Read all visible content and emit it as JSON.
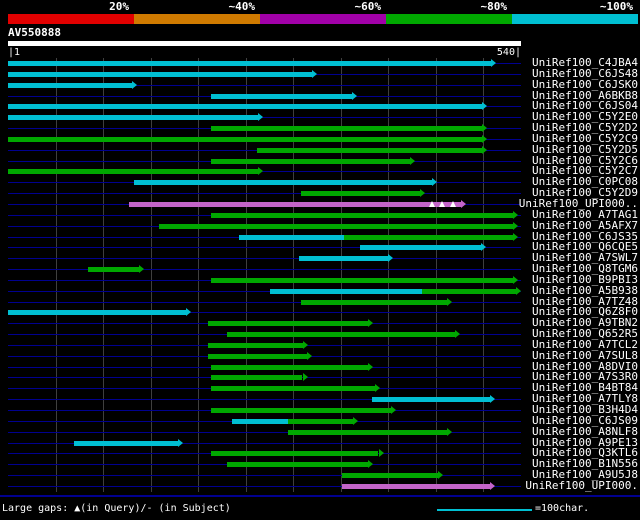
{
  "scale": {
    "segments": [
      {
        "label": "20%",
        "color": "#e10000"
      },
      {
        "label": "~40%",
        "color": "#cf7a00"
      },
      {
        "label": "~60%",
        "color": "#a100a8"
      },
      {
        "label": "~80%",
        "color": "#00a800"
      },
      {
        "label": "~100%",
        "color": "#00bfd2"
      }
    ]
  },
  "query": {
    "name": "AV550888",
    "ruler_left": "|1",
    "ruler_right": "540|",
    "length": 540
  },
  "footer": {
    "gaps_label": "Large gaps: ▲(in Query)/- (in Subject)",
    "ruler_label": "=100char.",
    "ruler_units": 100
  },
  "palette": {
    "cyan": "#00bfd2",
    "green": "#00a800",
    "magenta": "#c364c9",
    "row_line": "#000090",
    "grid_line": "#3f3f3f",
    "query_bar": "#ffffff",
    "gap_marker": "#ffffff"
  },
  "chart_data": {
    "type": "bar",
    "orientation": "horizontal",
    "title": "AV550888",
    "x_range": [
      1,
      540
    ],
    "grid_step": 50,
    "legend_bins": {
      "cyan": "~100%",
      "green": "~80%",
      "magenta": "~60%",
      "orange": "~40%",
      "red": "20%"
    },
    "rows": [
      {
        "label": "UniRef100_C4JBA4",
        "segments": [
          {
            "color": "cyan",
            "start": 0,
            "end": 508
          }
        ]
      },
      {
        "label": "UniRef100_C6JS48",
        "segments": [
          {
            "color": "cyan",
            "start": 0,
            "end": 320
          }
        ]
      },
      {
        "label": "UniRef100_C6JSK0",
        "segments": [
          {
            "color": "cyan",
            "start": 0,
            "end": 130
          }
        ]
      },
      {
        "label": "UniRef100_A6BKB8",
        "segments": [
          {
            "color": "cyan",
            "start": 214,
            "end": 362
          }
        ]
      },
      {
        "label": "UniRef100_C6JS04",
        "segments": [
          {
            "color": "cyan",
            "start": 0,
            "end": 499
          }
        ]
      },
      {
        "label": "UniRef100_C5Y2E0",
        "segments": [
          {
            "color": "cyan",
            "start": 0,
            "end": 263
          }
        ]
      },
      {
        "label": "UniRef100_C5Y2D2",
        "segments": [
          {
            "color": "green",
            "start": 214,
            "end": 499
          }
        ]
      },
      {
        "label": "UniRef100_C5Y2C9",
        "segments": [
          {
            "color": "green",
            "start": 0,
            "end": 499
          }
        ]
      },
      {
        "label": "UniRef100_C5Y2D5",
        "segments": [
          {
            "color": "green",
            "start": 262,
            "end": 499
          }
        ]
      },
      {
        "label": "UniRef100_C5Y2C6",
        "segments": [
          {
            "color": "green",
            "start": 214,
            "end": 423
          }
        ]
      },
      {
        "label": "UniRef100_C5Y2C7",
        "segments": [
          {
            "color": "green",
            "start": 0,
            "end": 263
          }
        ]
      },
      {
        "label": "UniRef100_C0PC08",
        "segments": [
          {
            "color": "cyan",
            "start": 133,
            "end": 446
          }
        ]
      },
      {
        "label": "UniRef100_C5Y2D9",
        "segments": [
          {
            "color": "green",
            "start": 308,
            "end": 434
          }
        ]
      },
      {
        "label": "UniRef100_UPI000..",
        "segments": [
          {
            "color": "magenta",
            "start": 127,
            "end": 477
          }
        ],
        "gap_markers": [
          446,
          457,
          468
        ]
      },
      {
        "label": "UniRef100_A7TAG1",
        "segments": [
          {
            "color": "green",
            "start": 214,
            "end": 532
          }
        ]
      },
      {
        "label": "UniRef100_A5AFX7",
        "segments": [
          {
            "color": "green",
            "start": 159,
            "end": 532
          }
        ]
      },
      {
        "label": "UniRef100_C6JS35",
        "segments": [
          {
            "color": "cyan",
            "start": 243,
            "end": 354
          },
          {
            "color": "green",
            "start": 354,
            "end": 532
          }
        ]
      },
      {
        "label": "UniRef100_Q6CQE5",
        "segments": [
          {
            "color": "cyan",
            "start": 370,
            "end": 498
          }
        ]
      },
      {
        "label": "UniRef100_A7SWL7",
        "segments": [
          {
            "color": "cyan",
            "start": 306,
            "end": 400
          }
        ]
      },
      {
        "label": "UniRef100_Q8TGM6",
        "segments": [
          {
            "color": "green",
            "start": 84,
            "end": 138
          }
        ]
      },
      {
        "label": "UniRef100_B9PBI3",
        "segments": [
          {
            "color": "green",
            "start": 214,
            "end": 532
          }
        ]
      },
      {
        "label": "UniRef100_A5B938",
        "segments": [
          {
            "color": "cyan",
            "start": 276,
            "end": 436
          },
          {
            "color": "green",
            "start": 436,
            "end": 535
          }
        ]
      },
      {
        "label": "UniRef100_A7TZ48",
        "segments": [
          {
            "color": "green",
            "start": 308,
            "end": 462
          }
        ]
      },
      {
        "label": "UniRef100_Q6Z8F0",
        "segments": [
          {
            "color": "cyan",
            "start": 0,
            "end": 187
          }
        ]
      },
      {
        "label": "UniRef100_A9TBN2",
        "segments": [
          {
            "color": "green",
            "start": 210,
            "end": 379
          }
        ]
      },
      {
        "label": "UniRef100_Q652R5",
        "segments": [
          {
            "color": "green",
            "start": 231,
            "end": 471
          }
        ]
      },
      {
        "label": "UniRef100_A7TCL2",
        "segments": [
          {
            "color": "green",
            "start": 210,
            "end": 310
          }
        ]
      },
      {
        "label": "UniRef100_A7SUL8",
        "segments": [
          {
            "color": "green",
            "start": 210,
            "end": 315
          }
        ]
      },
      {
        "label": "UniRef100_A8DVI0",
        "segments": [
          {
            "color": "green",
            "start": 214,
            "end": 379
          }
        ]
      },
      {
        "label": "UniRef100_A7S3R0",
        "segments": [
          {
            "color": "green",
            "start": 214,
            "end": 310
          }
        ]
      },
      {
        "label": "UniRef100_B4BT84",
        "segments": [
          {
            "color": "green",
            "start": 214,
            "end": 386
          }
        ]
      },
      {
        "label": "UniRef100_A7TLY8",
        "segments": [
          {
            "color": "cyan",
            "start": 383,
            "end": 507
          }
        ]
      },
      {
        "label": "UniRef100_B3H4D4",
        "segments": [
          {
            "color": "green",
            "start": 214,
            "end": 403
          }
        ]
      },
      {
        "label": "UniRef100_C6JS09",
        "segments": [
          {
            "color": "cyan",
            "start": 236,
            "end": 295
          },
          {
            "color": "green",
            "start": 295,
            "end": 363
          }
        ]
      },
      {
        "label": "UniRef100_A8NLF8",
        "segments": [
          {
            "color": "green",
            "start": 295,
            "end": 462
          }
        ]
      },
      {
        "label": "UniRef100_A9PE13",
        "segments": [
          {
            "color": "cyan",
            "start": 69,
            "end": 179
          }
        ]
      },
      {
        "label": "UniRef100_Q3KTL6",
        "segments": [
          {
            "color": "green",
            "start": 214,
            "end": 390
          }
        ]
      },
      {
        "label": "UniRef100_B1N556",
        "segments": [
          {
            "color": "green",
            "start": 231,
            "end": 379
          }
        ]
      },
      {
        "label": "UniRef100_A9U5J8",
        "segments": [
          {
            "color": "green",
            "start": 352,
            "end": 453
          }
        ]
      },
      {
        "label": "UniRef100_UPI000.",
        "segments": [
          {
            "color": "magenta",
            "start": 352,
            "end": 507
          }
        ]
      }
    ]
  }
}
